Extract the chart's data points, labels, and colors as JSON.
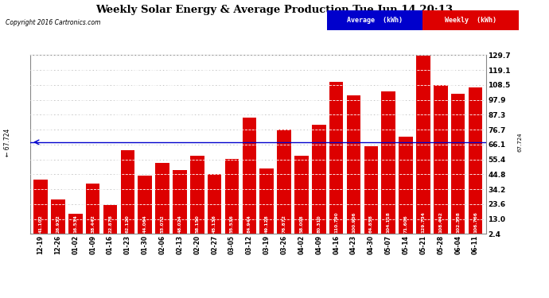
{
  "title": "Weekly Solar Energy & Average Production Tue Jun 14 20:13",
  "copyright": "Copyright 2016 Cartronics.com",
  "categories": [
    "12-19",
    "12-26",
    "01-02",
    "01-09",
    "01-16",
    "01-23",
    "01-30",
    "02-06",
    "02-13",
    "02-20",
    "02-27",
    "03-05",
    "03-12",
    "03-19",
    "03-26",
    "04-02",
    "04-09",
    "04-16",
    "04-23",
    "04-30",
    "05-07",
    "05-14",
    "05-21",
    "05-28",
    "06-04",
    "06-11"
  ],
  "values": [
    41.102,
    26.932,
    16.534,
    38.442,
    22.878,
    62.12,
    44.064,
    53.072,
    48.024,
    58.15,
    45.136,
    55.536,
    84.944,
    49.128,
    76.872,
    58.008,
    80.31,
    110.79,
    100.906,
    64.858,
    104.118,
    71.606,
    129.734,
    108.442,
    102.358,
    106.766
  ],
  "average_value": 67.724,
  "bar_color": "#dd0000",
  "avg_line_color": "#0000cc",
  "background_color": "#ffffff",
  "plot_bg_color": "#ffffff",
  "grid_color": "#aaaaaa",
  "bar_text_color": "#ffffff",
  "ytick_labels": [
    "2.4",
    "13.0",
    "23.6",
    "34.2",
    "44.8",
    "55.4",
    "66.1",
    "76.7",
    "87.3",
    "97.9",
    "108.5",
    "119.1",
    "129.7"
  ],
  "ytick_values": [
    2.4,
    13.0,
    23.6,
    34.2,
    44.8,
    55.4,
    66.1,
    76.7,
    87.3,
    97.9,
    108.5,
    119.1,
    129.7
  ],
  "ymin": 2.4,
  "ymax": 129.7,
  "legend_avg_bg": "#0000cc",
  "legend_weekly_bg": "#dd0000",
  "avg_label": "67.724"
}
